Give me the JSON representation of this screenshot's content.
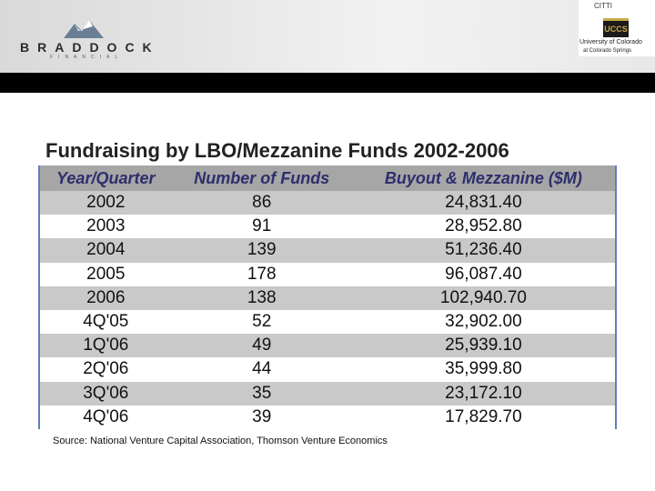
{
  "header": {
    "brand": "BRADDOCK",
    "brand_sub": "FINANCIAL",
    "partner_top": "CITTI",
    "partner_logo": "UCCS",
    "partner_line1": "University of Colorado",
    "partner_line2": "at Colorado Springs"
  },
  "title": "Fundraising by LBO/Mezzanine Funds 2002-2006",
  "table": {
    "columns": [
      "Year/Quarter",
      "Number of Funds",
      "Buyout & Mezzanine ($M)"
    ],
    "rows": [
      [
        "2002",
        "86",
        "24,831.40"
      ],
      [
        "2003",
        "91",
        "28,952.80"
      ],
      [
        "2004",
        "139",
        "51,236.40"
      ],
      [
        "2005",
        "178",
        "96,087.40"
      ],
      [
        "2006",
        "138",
        "102,940.70"
      ],
      [
        "4Q'05",
        "52",
        "32,902.00"
      ],
      [
        "1Q'06",
        "49",
        "25,939.10"
      ],
      [
        "2Q'06",
        "44",
        "35,999.80"
      ],
      [
        "3Q'06",
        "35",
        "23,172.10"
      ],
      [
        "4Q'06",
        "39",
        "17,829.70"
      ]
    ]
  },
  "source": "Source: National Venture Capital Association, Thomson Venture Economics"
}
